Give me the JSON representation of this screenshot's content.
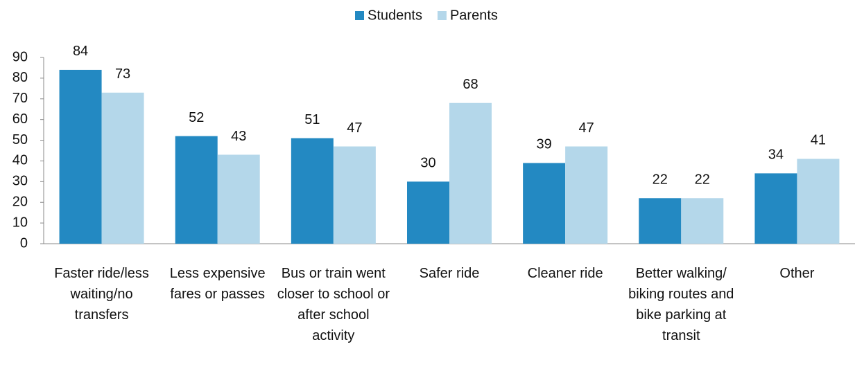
{
  "chart_data": {
    "type": "bar",
    "categories": [
      "Faster ride/less waiting/no transfers",
      "Less expensive fares or passes",
      "Bus or train went closer to school or after school activity",
      "Safer ride",
      "Cleaner ride",
      "Better walking/ biking routes and bike parking at transit",
      "Other"
    ],
    "series": [
      {
        "name": "Students",
        "color": "#2389c2",
        "values": [
          84,
          52,
          51,
          30,
          39,
          22,
          34
        ]
      },
      {
        "name": "Parents",
        "color": "#b4d7ea",
        "values": [
          73,
          43,
          47,
          68,
          47,
          22,
          41
        ]
      }
    ],
    "ylim": [
      0,
      90
    ],
    "yticks": [
      0,
      10,
      20,
      30,
      40,
      50,
      60,
      70,
      80,
      90
    ],
    "grid": false,
    "legend": "top"
  }
}
